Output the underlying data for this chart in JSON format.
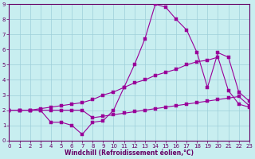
{
  "background_color": "#c8eef0",
  "grid_color": "#9ecfda",
  "line_color": "#990099",
  "xlim": [
    0,
    23
  ],
  "ylim": [
    0,
    9
  ],
  "xticks": [
    0,
    1,
    2,
    3,
    4,
    5,
    6,
    7,
    8,
    9,
    10,
    11,
    12,
    13,
    14,
    15,
    16,
    17,
    18,
    19,
    20,
    21,
    22,
    23
  ],
  "yticks": [
    0,
    1,
    2,
    3,
    4,
    5,
    6,
    7,
    8,
    9
  ],
  "xlabel": "Windchill (Refroidissement éolien,°C)",
  "line_bottom_x": [
    0,
    1,
    2,
    3,
    4,
    5,
    6,
    7,
    8,
    9,
    10,
    11,
    12,
    13,
    14,
    15,
    16,
    17,
    18,
    19,
    20,
    21,
    22,
    23
  ],
  "line_bottom_y": [
    2.0,
    2.0,
    2.0,
    2.0,
    2.0,
    2.0,
    2.0,
    2.0,
    1.5,
    1.6,
    1.7,
    1.8,
    1.9,
    2.0,
    2.1,
    2.2,
    2.3,
    2.4,
    2.5,
    2.6,
    2.7,
    2.8,
    2.9,
    2.3
  ],
  "line_spike_x": [
    0,
    1,
    2,
    3,
    4,
    5,
    6,
    7,
    8,
    9,
    10,
    11,
    12,
    13,
    14,
    15,
    16,
    17,
    18,
    19,
    20,
    21,
    22,
    23
  ],
  "line_spike_y": [
    2.0,
    2.0,
    2.0,
    2.0,
    1.2,
    1.2,
    1.0,
    0.4,
    1.2,
    1.3,
    2.0,
    3.5,
    5.0,
    6.7,
    9.0,
    8.8,
    8.0,
    7.3,
    5.8,
    3.5,
    5.8,
    5.5,
    3.2,
    2.6
  ],
  "line_mid_x": [
    0,
    1,
    2,
    3,
    4,
    5,
    6,
    7,
    8,
    9,
    10,
    11,
    12,
    13,
    14,
    15,
    16,
    17,
    18,
    19,
    20,
    21,
    22,
    23
  ],
  "line_mid_y": [
    2.0,
    2.0,
    2.0,
    2.1,
    2.2,
    2.3,
    2.4,
    2.5,
    2.7,
    3.0,
    3.2,
    3.5,
    3.8,
    4.0,
    4.3,
    4.5,
    4.7,
    5.0,
    5.2,
    5.3,
    5.5,
    3.3,
    2.4,
    2.2
  ]
}
